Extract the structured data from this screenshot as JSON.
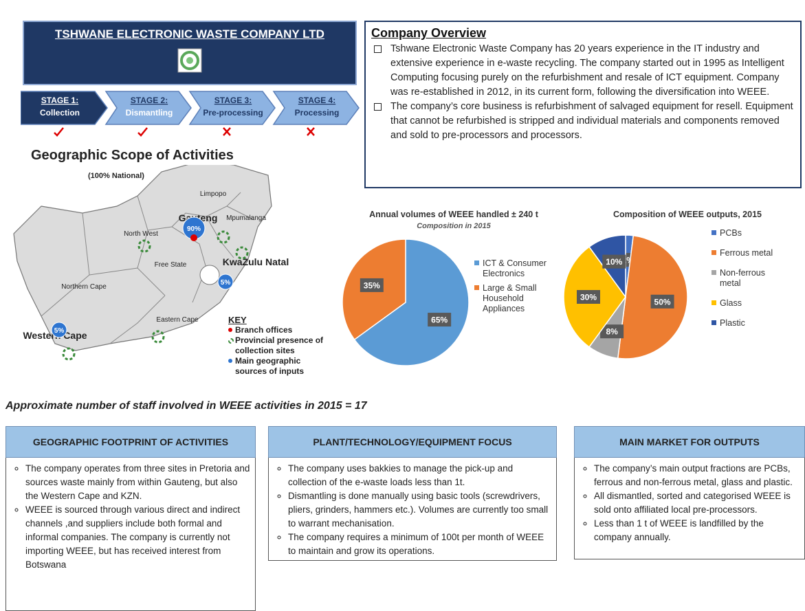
{
  "header": {
    "title": "TSHWANE ELECTRONIC WASTE COMPANY LTD"
  },
  "stages": [
    {
      "label": "STAGE 1:",
      "name": "Collection",
      "completed": true
    },
    {
      "label": "STAGE 2:",
      "name": "Dismantling",
      "completed": true
    },
    {
      "label": "STAGE 3:",
      "name": "Pre-processing",
      "completed": false
    },
    {
      "label": "STAGE 4:",
      "name": "Processing",
      "completed": false
    }
  ],
  "map": {
    "title": "Geographic Scope of Activities",
    "subtitle": "(100% National)",
    "regions": [
      "Limpopo",
      "Mpumalanga",
      "Gauteng",
      "North West",
      "Free State",
      "KwaZulu Natal",
      "Northern Cape",
      "Eastern Cape",
      "Western Cape"
    ],
    "markers": [
      "90%",
      "5%",
      "5%"
    ],
    "key": {
      "title": "KEY",
      "items": [
        "Branch offices",
        "Provincial presence of collection sites",
        "Main geographic sources of inputs"
      ]
    }
  },
  "overview": {
    "title": "Company Overview",
    "bullets": [
      "Tshwane Electronic Waste Company has 20 years experience in the IT industry and extensive experience in e-waste recycling. The company started out in 1995 as Intelligent Computing focusing purely on the refurbishment and resale of ICT equipment.  Company was re-established in 2012, in its current form, following the diversification into WEEE.",
      "The company’s core business is refurbishment of salvaged equipment for resell. Equipment that cannot be refurbished is stripped and individual materials  and components removed  and sold to pre-processors and processors."
    ]
  },
  "pies": [
    {
      "type": "pie",
      "title": "Annual volumes of WEEE handled ± 240 t",
      "subtitle": "Composition in 2015",
      "categories": [
        "ICT & Consumer Electronics",
        "Large & Small Household Appliances"
      ],
      "values": [
        65,
        35
      ],
      "value_labels": [
        "65%",
        "35%"
      ],
      "colors": [
        "#5b9bd5",
        "#ed7d31"
      ]
    },
    {
      "type": "pie",
      "title": "Composition of WEEE outputs, 2015",
      "categories": [
        "PCBs",
        "Ferrous metal",
        "Non-ferrous metal",
        "Glass",
        "Plastic"
      ],
      "values": [
        2,
        50,
        8,
        30,
        10
      ],
      "value_labels": [
        "2%",
        "50%",
        "8%",
        "30%",
        "10%"
      ],
      "colors": [
        "#4472c4",
        "#ed7d31",
        "#a5a5a5",
        "#ffc000",
        "#2f55a4"
      ]
    }
  ],
  "staff": "Approximate number of staff involved in WEEE activities in 2015 = 17",
  "panels": [
    {
      "title": "GEOGRAPHIC FOOTPRINT OF ACTIVITIES",
      "bullets": [
        "The company operates from three sites in Pretoria and sources waste mainly from within Gauteng, but also the Western Cape and KZN.",
        "WEEE is sourced through various direct and indirect channels ,and suppliers include both formal and informal companies. The company is currently not importing WEEE, but has received interest from Botswana"
      ]
    },
    {
      "title": "PLANT/TECHNOLOGY/EQUIPMENT  FOCUS",
      "bullets": [
        "The company uses bakkies to manage the pick-up and collection of the e-waste loads less than 1t.",
        "Dismantling is done manually using basic tools (screwdrivers, pliers, grinders, hammers etc.). Volumes are currently too small to warrant mechanisation.",
        "The company requires a minimum of 100t per month of WEEE to maintain and grow its operations."
      ]
    },
    {
      "title": "MAIN MARKET FOR OUTPUTS",
      "bullets": [
        "The company’s main output fractions are PCBs, ferrous and non-ferrous metal, glass and plastic.",
        "All dismantled, sorted and categorised WEEE is sold onto affiliated local pre-processors.",
        "Less than 1 t of WEEE is landfilled by the company annually."
      ]
    }
  ]
}
